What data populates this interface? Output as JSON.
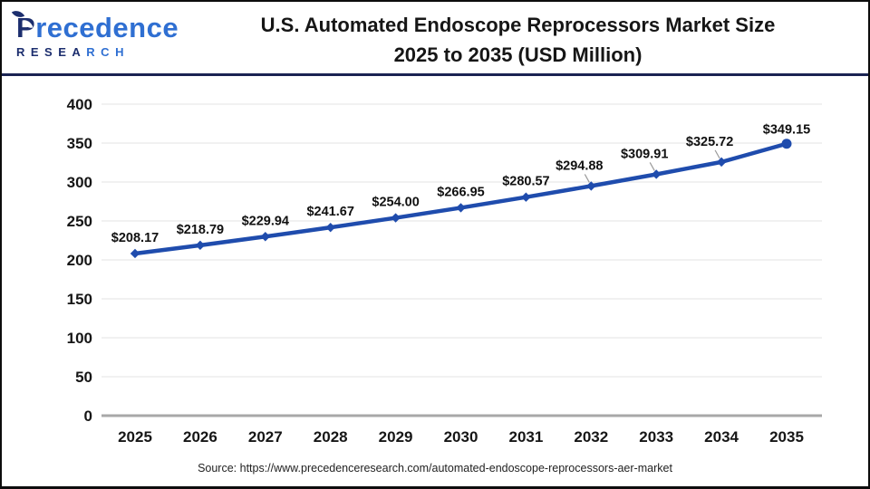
{
  "header": {
    "logo": {
      "main_initial": "P",
      "main_rest": "recedence",
      "sub_left": "RESEA",
      "sub_right": "RCH"
    },
    "title_line1": "U.S. Automated Endoscope Reprocessors Market Size",
    "title_line2": "2025 to 2035 (USD Million)"
  },
  "chart_data": {
    "type": "line",
    "title": "U.S. Automated Endoscope Reprocessors Market Size 2025 to 2035 (USD Million)",
    "categories": [
      "2025",
      "2026",
      "2027",
      "2028",
      "2029",
      "2030",
      "2031",
      "2032",
      "2033",
      "2034",
      "2035"
    ],
    "values": [
      208.17,
      218.79,
      229.94,
      241.67,
      254.0,
      266.95,
      280.57,
      294.88,
      309.91,
      325.72,
      349.15
    ],
    "point_labels": [
      "$208.17",
      "$218.79",
      "$229.94",
      "$241.67",
      "$254.00",
      "$266.95",
      "$280.57",
      "$294.88",
      "$309.91",
      "$325.72",
      "$349.15"
    ],
    "xlabel": "",
    "ylabel": "",
    "ylim": [
      0,
      400
    ],
    "yticks": [
      0,
      50,
      100,
      150,
      200,
      250,
      300,
      350,
      400
    ],
    "grid": true,
    "legend": "none",
    "line_color": "#1f4cad",
    "marker": "diamond",
    "end_marker": "circle",
    "label_leader_indices": [
      7,
      8,
      9
    ]
  },
  "footer": {
    "source": "Source: https://www.precedenceresearch.com/automated-endoscope-reprocessors-aer-market"
  }
}
